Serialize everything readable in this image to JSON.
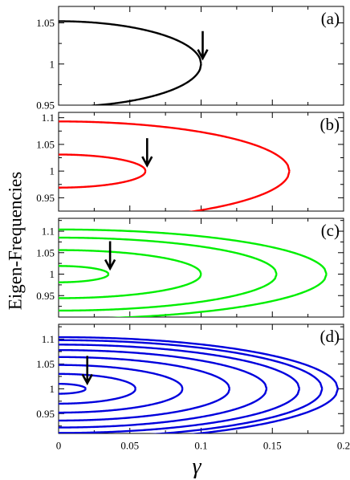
{
  "chart_data": {
    "type": "line",
    "ylabel": "Eigen-Frequencies",
    "xlabel": "γ",
    "xlim": [
      0,
      0.2
    ],
    "x_ticks": [
      0,
      0.05,
      0.1,
      0.15,
      0.2
    ],
    "x_tick_labels": [
      "0",
      "0.05",
      "0.1",
      "0.15",
      "0.2"
    ],
    "grid": false,
    "legend": "none",
    "panels": [
      {
        "label": "(a)",
        "color": "#000000",
        "ylim": [
          0.95,
          1.07
        ],
        "y_ticks": [
          0.95,
          1.0,
          1.05
        ],
        "y_tick_labels": [
          "0.95",
          "1",
          "1.05"
        ],
        "arrow_gamma": 0.1,
        "branches": [
          {
            "y0": 1.0,
            "half_width": 0.052,
            "gamma_c": 0.1
          }
        ]
      },
      {
        "label": "(b)",
        "color": "#ff0000",
        "ylim": [
          0.925,
          1.11
        ],
        "y_ticks": [
          0.95,
          1.0,
          1.05,
          1.1
        ],
        "y_tick_labels": [
          "0.95",
          "1",
          "1.05",
          "1.1"
        ],
        "arrow_gamma": 0.061,
        "branches": [
          {
            "y0": 1.0,
            "half_width": 0.031,
            "gamma_c": 0.061
          },
          {
            "y0": 1.0,
            "half_width": 0.093,
            "gamma_c": 0.162
          }
        ]
      },
      {
        "label": "(c)",
        "color": "#00ee00",
        "ylim": [
          0.9,
          1.13
        ],
        "y_ticks": [
          0.95,
          1.0,
          1.05,
          1.1
        ],
        "y_tick_labels": [
          "0.95",
          "1",
          "1.05",
          "1.1"
        ],
        "arrow_gamma": 0.035,
        "branches": [
          {
            "y0": 1.0,
            "half_width": 0.019,
            "gamma_c": 0.035
          },
          {
            "y0": 1.0,
            "half_width": 0.056,
            "gamma_c": 0.1
          },
          {
            "y0": 1.0,
            "half_width": 0.085,
            "gamma_c": 0.153
          },
          {
            "y0": 1.0,
            "half_width": 0.104,
            "gamma_c": 0.188
          }
        ]
      },
      {
        "label": "(d)",
        "color": "#0000dd",
        "ylim": [
          0.91,
          1.13
        ],
        "y_ticks": [
          0.95,
          1.0,
          1.05,
          1.1
        ],
        "y_tick_labels": [
          "0.95",
          "1",
          "1.05",
          "1.1"
        ],
        "arrow_gamma": 0.019,
        "branches": [
          {
            "y0": 1.0,
            "half_width": 0.01,
            "gamma_c": 0.019
          },
          {
            "y0": 1.0,
            "half_width": 0.03,
            "gamma_c": 0.054
          },
          {
            "y0": 1.0,
            "half_width": 0.048,
            "gamma_c": 0.087
          },
          {
            "y0": 1.0,
            "half_width": 0.064,
            "gamma_c": 0.12
          },
          {
            "y0": 1.0,
            "half_width": 0.078,
            "gamma_c": 0.146
          },
          {
            "y0": 1.0,
            "half_width": 0.089,
            "gamma_c": 0.169
          },
          {
            "y0": 1.0,
            "half_width": 0.098,
            "gamma_c": 0.185
          },
          {
            "y0": 1.0,
            "half_width": 0.104,
            "gamma_c": 0.196
          }
        ]
      }
    ]
  }
}
